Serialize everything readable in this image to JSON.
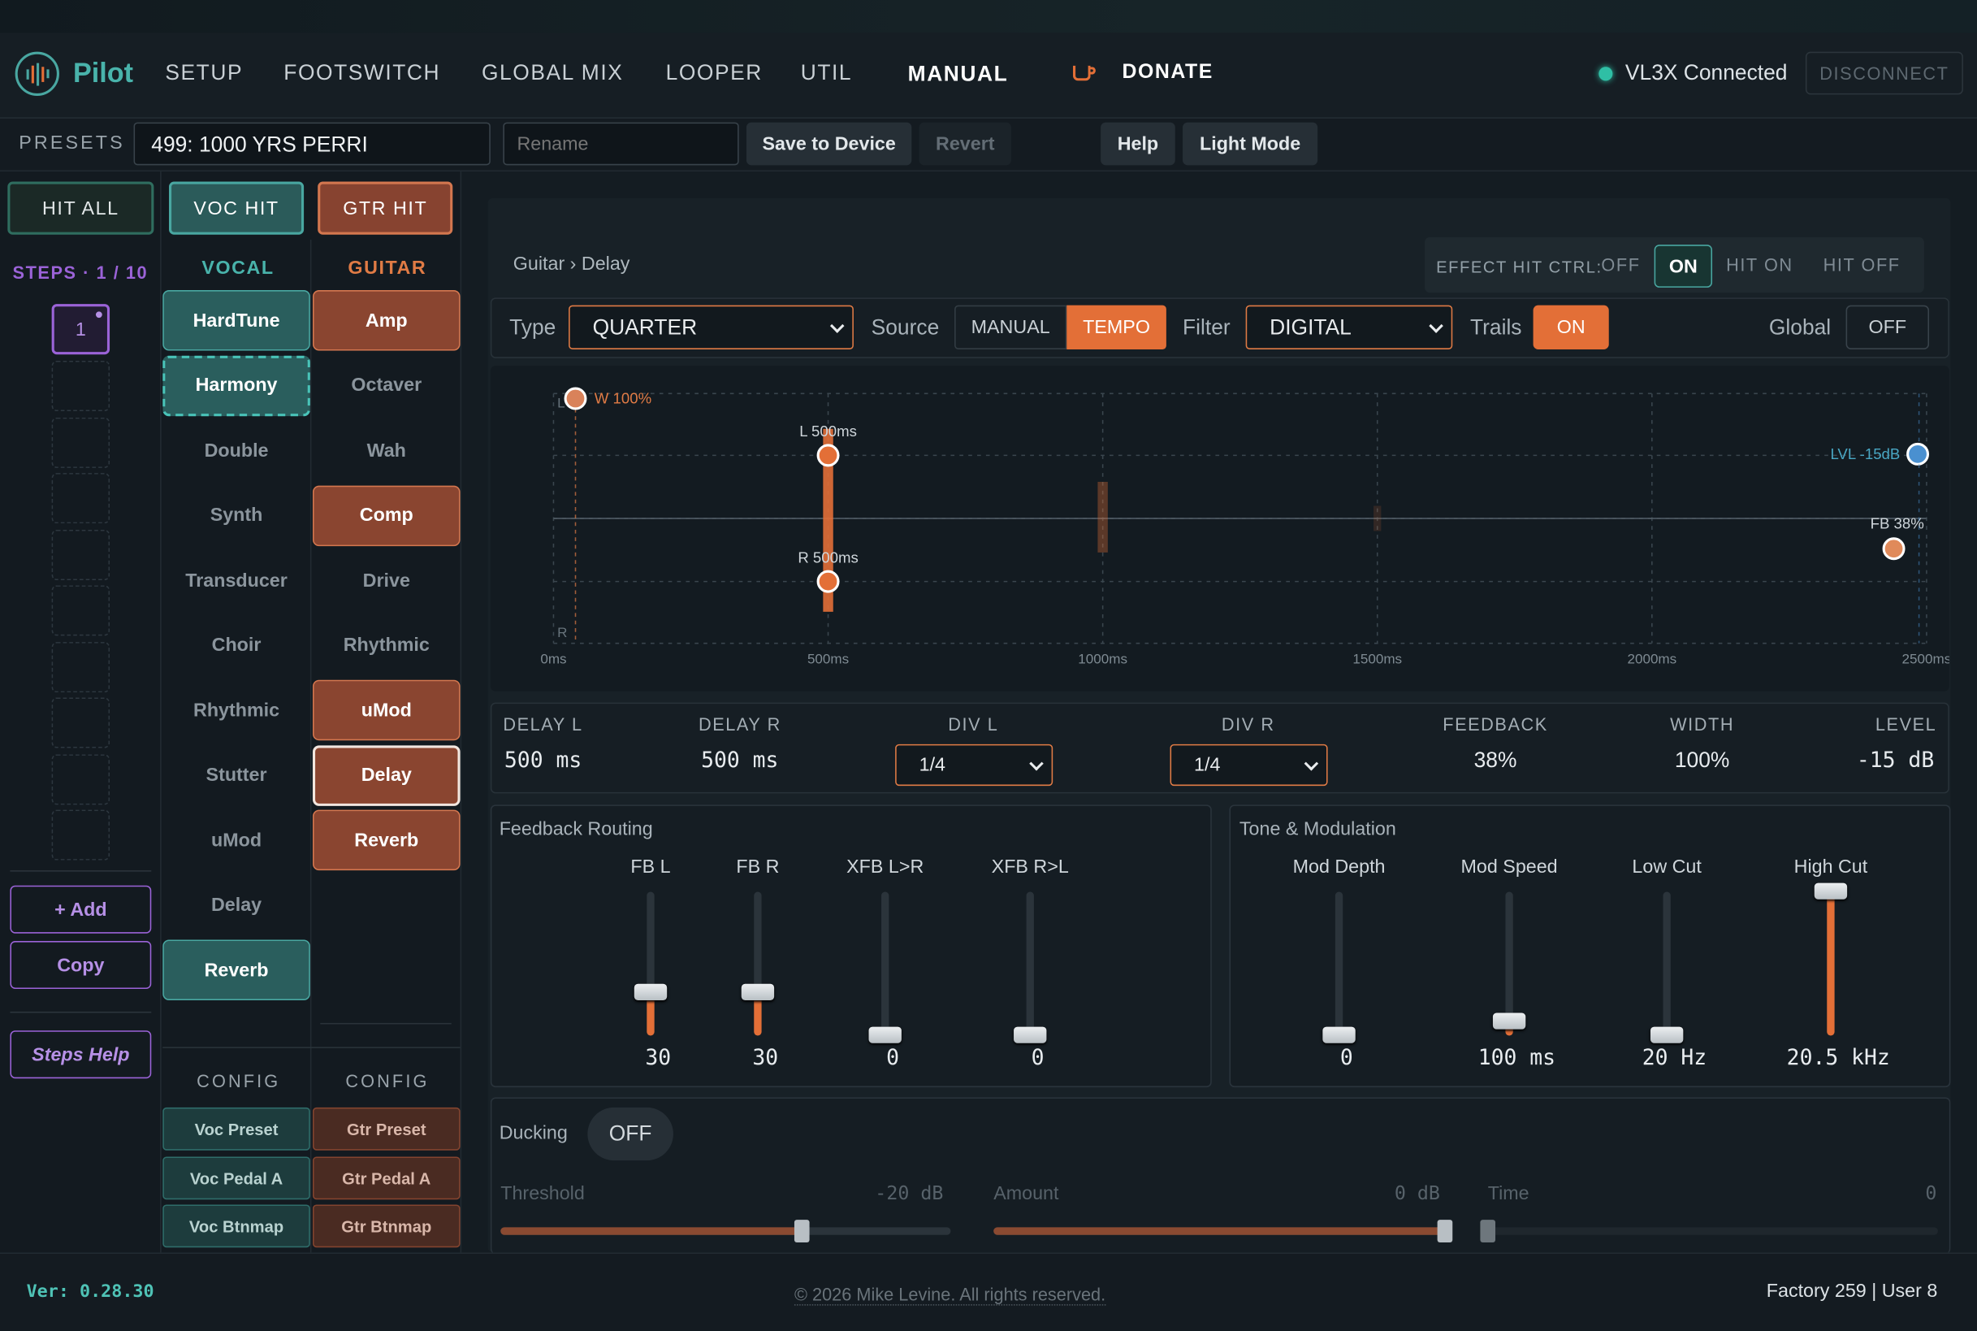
{
  "app": {
    "name": "Pilot",
    "version": "Ver: 0.28.30",
    "footer": "© 2026 Mike Levine. All rights reserved.",
    "counts": "Factory 259 | User 8"
  },
  "nav": {
    "items": [
      "SETUP",
      "FOOTSWITCH",
      "GLOBAL MIX",
      "LOOPER",
      "UTIL",
      "MANUAL"
    ],
    "donate": "DONATE",
    "status": "VL3X Connected",
    "disconnect": "DISCONNECT"
  },
  "presets": {
    "label": "PRESETS",
    "current": "499: 1000 YRS PERRI",
    "rename_placeholder": "Rename",
    "save": "Save to Device",
    "revert": "Revert",
    "help": "Help",
    "light_mode": "Light Mode"
  },
  "hits": {
    "all": "HIT ALL",
    "voc": "VOC HIT",
    "gtr": "GTR HIT"
  },
  "steps": {
    "label": "STEPS · 1 / 10",
    "current": "1",
    "add": "+ Add",
    "copy": "Copy",
    "help": "Steps Help"
  },
  "vocal": {
    "title": "VOCAL",
    "effects": [
      {
        "label": "HardTune",
        "on": true
      },
      {
        "label": "Harmony",
        "on": true,
        "selected": true
      },
      {
        "label": "Double",
        "on": false
      },
      {
        "label": "Synth",
        "on": false
      },
      {
        "label": "Transducer",
        "on": false
      },
      {
        "label": "Choir",
        "on": false
      },
      {
        "label": "Rhythmic",
        "on": false
      },
      {
        "label": "Stutter",
        "on": false
      },
      {
        "label": "uMod",
        "on": false
      },
      {
        "label": "Delay",
        "on": false
      },
      {
        "label": "Reverb",
        "on": true
      }
    ],
    "config_title": "CONFIG",
    "config": [
      "Voc Preset",
      "Voc Pedal A",
      "Voc Btnmap"
    ]
  },
  "guitar": {
    "title": "GUITAR",
    "effects": [
      {
        "label": "Amp",
        "on": true
      },
      {
        "label": "Octaver",
        "on": false
      },
      {
        "label": "Wah",
        "on": false
      },
      {
        "label": "Comp",
        "on": true
      },
      {
        "label": "Drive",
        "on": false
      },
      {
        "label": "Rhythmic",
        "on": false
      },
      {
        "label": "uMod",
        "on": true
      },
      {
        "label": "Delay",
        "on": true,
        "selected": true
      },
      {
        "label": "Reverb",
        "on": true
      }
    ],
    "config_title": "CONFIG",
    "config": [
      "Gtr Preset",
      "Gtr Pedal A",
      "Gtr Btnmap"
    ]
  },
  "editor": {
    "breadcrumb": "Guitar › Delay",
    "hitctrl": {
      "label": "EFFECT HIT CTRL:",
      "options": [
        "OFF",
        "ON",
        "HIT ON",
        "HIT OFF"
      ],
      "selected": "ON"
    },
    "type": {
      "label": "Type",
      "value": "QUARTER"
    },
    "source": {
      "label": "Source",
      "options": [
        "MANUAL",
        "TEMPO"
      ],
      "selected": "TEMPO"
    },
    "filter": {
      "label": "Filter",
      "value": "DIGITAL"
    },
    "trails": {
      "label": "Trails",
      "value": "ON"
    },
    "global": {
      "label": "Global",
      "value": "OFF"
    }
  },
  "chart_data": {
    "type": "scatter",
    "x_ticks": [
      "0ms",
      "500ms",
      "1000ms",
      "1500ms",
      "2000ms",
      "2500ms"
    ],
    "xlim": [
      0,
      2500
    ],
    "y_labels": [
      "L",
      "R"
    ],
    "points": [
      {
        "label": "W 100%",
        "x": 40
      },
      {
        "label": "L 500ms",
        "x": 500
      },
      {
        "label": "R 500ms",
        "x": 500
      },
      {
        "label": "LVL -15dB",
        "value": -15
      },
      {
        "label": "FB 38%",
        "value": 38
      }
    ]
  },
  "params": [
    {
      "label": "DELAY L",
      "value": "500 ms"
    },
    {
      "label": "DELAY R",
      "value": "500 ms"
    },
    {
      "label": "DIV L",
      "value": "1/4"
    },
    {
      "label": "DIV R",
      "value": "1/4"
    },
    {
      "label": "FEEDBACK",
      "value": "38%"
    },
    {
      "label": "WIDTH",
      "value": "100%"
    },
    {
      "label": "LEVEL",
      "value": "-15 dB"
    }
  ],
  "routing": {
    "title": "Feedback Routing",
    "sliders": [
      {
        "label": "FB L",
        "value": "30",
        "level": 0.3
      },
      {
        "label": "FB R",
        "value": "30",
        "level": 0.3
      },
      {
        "label": "XFB L>R",
        "value": "0",
        "level": 0
      },
      {
        "label": "XFB R>L",
        "value": "0",
        "level": 0
      }
    ]
  },
  "tone": {
    "title": "Tone & Modulation",
    "sliders": [
      {
        "label": "Mod Depth",
        "value": "0",
        "level": 0
      },
      {
        "label": "Mod Speed",
        "value": "100 ms",
        "level": 0.1
      },
      {
        "label": "Low Cut",
        "value": "20 Hz",
        "level": 0
      },
      {
        "label": "High Cut",
        "value": "20.5 kHz",
        "level": 1
      }
    ]
  },
  "ducking": {
    "label": "Ducking",
    "toggle": "OFF",
    "threshold": {
      "label": "Threshold",
      "value": "-20 dB",
      "level": 0.67
    },
    "amount": {
      "label": "Amount",
      "value": "0 dB",
      "level": 1
    },
    "time": {
      "label": "Time",
      "value": "0",
      "level": 0
    }
  },
  "colors": {
    "accent": "#e36f37",
    "teal": "#49a7a1",
    "purple": "#9b63d8",
    "bg": "#141c22"
  }
}
